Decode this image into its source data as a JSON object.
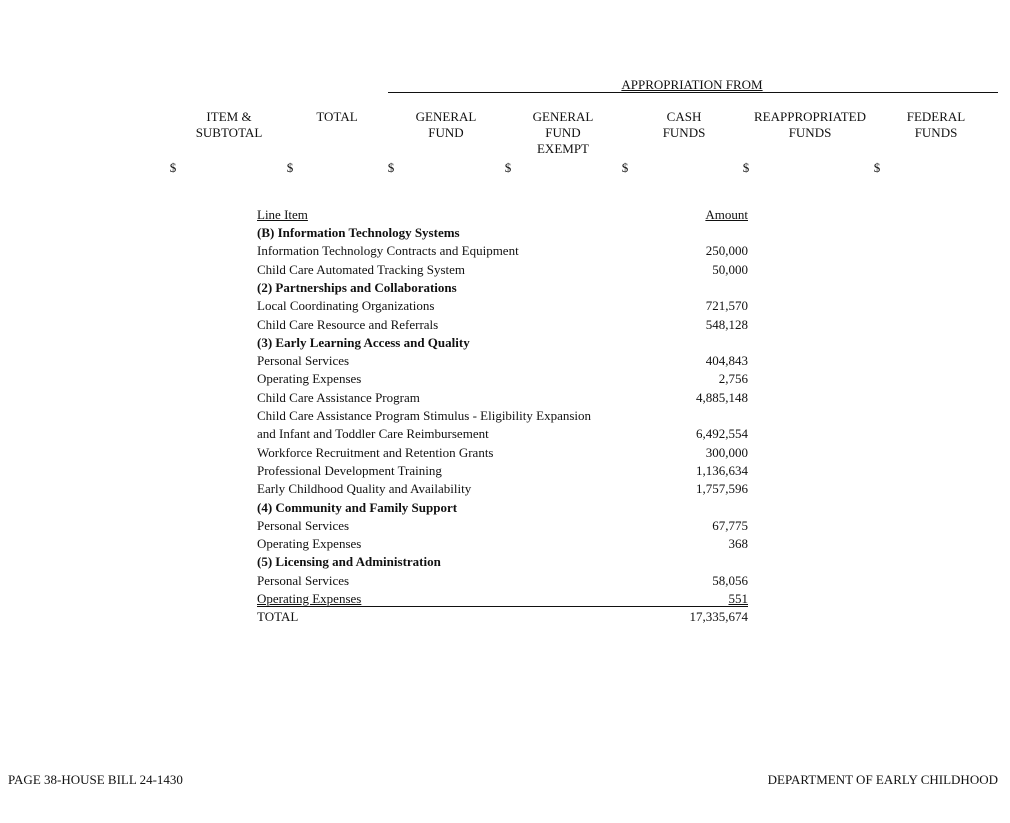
{
  "header": {
    "title": "APPROPRIATION FROM",
    "columns": [
      "ITEM &\nSUBTOTAL",
      "TOTAL",
      "GENERAL\nFUND",
      "GENERAL\nFUND\nEXEMPT",
      "CASH\nFUNDS",
      "REAPPROPRIATED\nFUNDS",
      "FEDERAL\nFUNDS"
    ],
    "currency": [
      "$",
      "$",
      "$",
      "$",
      "$",
      "$",
      "$"
    ]
  },
  "table": {
    "headers": [
      "Line Item",
      "Amount"
    ],
    "rows": [
      {
        "item": "(B) Information Technology Systems",
        "heading": true
      },
      {
        "item": "Information Technology Contracts and Equipment",
        "amount": "250,000"
      },
      {
        "item": "Child Care Automated Tracking System",
        "amount": "50,000"
      },
      {
        "item": "(2) Partnerships and Collaborations",
        "heading": true
      },
      {
        "item": "Local Coordinating Organizations",
        "amount": "721,570"
      },
      {
        "item": "Child Care Resource and Referrals",
        "amount": "548,128"
      },
      {
        "item": "(3) Early Learning Access and Quality",
        "heading": true
      },
      {
        "item": "Personal Services",
        "amount": "404,843"
      },
      {
        "item": "Operating Expenses",
        "amount": "2,756"
      },
      {
        "item": "Child Care Assistance Program",
        "amount": "4,885,148"
      },
      {
        "item": "Child Care Assistance Program Stimulus - Eligibility Expansion"
      },
      {
        "item": "and Infant and Toddler Care Reimbursement",
        "amount": "6,492,554"
      },
      {
        "item": "Workforce Recruitment and Retention Grants",
        "amount": "300,000"
      },
      {
        "item": "Professional Development Training",
        "amount": "1,136,634"
      },
      {
        "item": "Early Childhood Quality and Availability",
        "amount": "1,757,596"
      },
      {
        "item": "(4) Community and Family Support",
        "heading": true
      },
      {
        "item": "Personal Services",
        "amount": "67,775"
      },
      {
        "item": "Operating Expenses",
        "amount": "368"
      },
      {
        "item": "(5) Licensing and Administration",
        "heading": true
      },
      {
        "item": "Personal Services",
        "amount": "58,056"
      },
      {
        "item": "Operating Expenses",
        "amount": "551",
        "underline": true
      },
      {
        "item": "TOTAL",
        "amount": "17,335,674"
      }
    ]
  },
  "footer": {
    "left": "PAGE 38-HOUSE BILL 24-1430",
    "right": "DEPARTMENT OF EARLY CHILDHOOD"
  }
}
